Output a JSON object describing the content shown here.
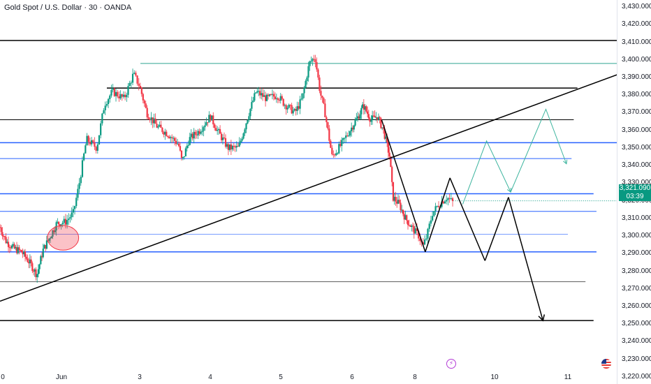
{
  "header": {
    "title": "Gold Spot / U.S. Dollar · 30 · OANDA"
  },
  "chart_data": {
    "type": "candlestick",
    "title": "Gold Spot / U.S. Dollar · 30 · OANDA",
    "y_axis": {
      "ticks": [
        "3,430.000",
        "3,420.000",
        "3,410.000",
        "3,400.000",
        "3,390.000",
        "3,380.000",
        "3,370.000",
        "3,360.000",
        "3,350.000",
        "3,340.000",
        "3,330.000",
        "3,320.000",
        "3,310.000",
        "3,300.000",
        "3,290.000",
        "3,280.000",
        "3,270.000",
        "3,260.000",
        "3,250.000",
        "3,240.000",
        "3,230.000",
        "3,220.000"
      ],
      "ylim": [
        3216,
        3434
      ]
    },
    "x_axis": {
      "ticks": [
        {
          "label": "0",
          "t": 0
        },
        {
          "label": "Jun",
          "t": 1
        },
        {
          "label": "3",
          "t": 2
        },
        {
          "label": "4",
          "t": 3
        },
        {
          "label": "5",
          "t": 4
        },
        {
          "label": "6",
          "t": 5
        },
        {
          "label": "8",
          "t": 6
        },
        {
          "label": "10",
          "t": 7
        },
        {
          "label": "11",
          "t": 8
        }
      ]
    },
    "current_price": {
      "value": "3,321.090",
      "countdown": "03:39",
      "color": "#089981"
    },
    "colors": {
      "up": "#089981",
      "down": "#f23645",
      "trend": "#000000",
      "blue_level": "#2962ff",
      "teal_projection": "#3cb49e"
    },
    "path_nodes": [
      [
        0.0,
        3305
      ],
      [
        0.1,
        3297
      ],
      [
        0.22,
        3293
      ],
      [
        0.35,
        3291
      ],
      [
        0.48,
        3285
      ],
      [
        0.6,
        3278
      ],
      [
        0.7,
        3292
      ],
      [
        0.82,
        3300
      ],
      [
        0.92,
        3307
      ],
      [
        1.05,
        3308
      ],
      [
        1.15,
        3313
      ],
      [
        1.22,
        3328
      ],
      [
        1.32,
        3355
      ],
      [
        1.45,
        3350
      ],
      [
        1.55,
        3375
      ],
      [
        1.65,
        3382
      ],
      [
        1.8,
        3378
      ],
      [
        1.92,
        3392
      ],
      [
        2.0,
        3385
      ],
      [
        2.1,
        3370
      ],
      [
        2.25,
        3362
      ],
      [
        2.4,
        3358
      ],
      [
        2.55,
        3352
      ],
      [
        2.6,
        3342
      ],
      [
        2.7,
        3355
      ],
      [
        2.85,
        3360
      ],
      [
        3.0,
        3368
      ],
      [
        3.1,
        3360
      ],
      [
        3.25,
        3350
      ],
      [
        3.4,
        3350
      ],
      [
        3.55,
        3370
      ],
      [
        3.65,
        3382
      ],
      [
        3.8,
        3378
      ],
      [
        3.95,
        3380
      ],
      [
        4.05,
        3375
      ],
      [
        4.2,
        3370
      ],
      [
        4.3,
        3378
      ],
      [
        4.4,
        3398
      ],
      [
        4.48,
        3402
      ],
      [
        4.55,
        3382
      ],
      [
        4.62,
        3370
      ],
      [
        4.72,
        3345
      ],
      [
        4.85,
        3352
      ],
      [
        5.0,
        3362
      ],
      [
        5.1,
        3368
      ],
      [
        5.18,
        3374
      ],
      [
        5.3,
        3366
      ],
      [
        5.4,
        3368
      ],
      [
        5.5,
        3360
      ],
      [
        5.6,
        3345
      ],
      [
        5.65,
        3322
      ],
      [
        5.75,
        3318
      ],
      [
        5.85,
        3310
      ],
      [
        5.95,
        3305
      ],
      [
        6.05,
        3300
      ],
      [
        6.1,
        3294
      ],
      [
        6.15,
        3300
      ],
      [
        6.22,
        3313
      ],
      [
        6.3,
        3318
      ],
      [
        6.4,
        3322
      ],
      [
        6.48,
        3319
      ]
    ],
    "drawings": {
      "horizontal_levels": [
        {
          "y": 3411,
          "t0": 0.0,
          "t1": 8.7,
          "color": "#000000",
          "width": 1.5
        },
        {
          "y": 3398,
          "t0": 2.01,
          "t1": 8.7,
          "color": "#2fa590",
          "width": 1.0
        },
        {
          "y": 3384,
          "t0": 1.58,
          "t1": 8.13,
          "color": "#000000",
          "width": 1.5
        },
        {
          "y": 3366,
          "t0": 0.0,
          "t1": 8.08,
          "color": "#000000",
          "width": 1.0
        },
        {
          "y": 3353,
          "t0": 0.0,
          "t1": 8.7,
          "color": "#2962ff",
          "width": 1.5
        },
        {
          "y": 3344,
          "t0": 0.0,
          "t1": 8.05,
          "color": "#2962ff",
          "width": 1.0
        },
        {
          "y": 3324,
          "t0": 0.0,
          "t1": 8.35,
          "color": "#2962ff",
          "width": 1.5
        },
        {
          "y": 3320,
          "t0": 6.48,
          "t1": 8.7,
          "color": "#089981",
          "width": 1.0,
          "dash": true
        },
        {
          "y": 3314,
          "t0": 0.0,
          "t1": 8.39,
          "color": "#2962ff",
          "width": 1.0
        },
        {
          "y": 3301,
          "t0": 0.0,
          "t1": 8.0,
          "color": "#2962ff",
          "width": 0.7
        },
        {
          "y": 3291,
          "t0": 0.0,
          "t1": 8.39,
          "color": "#2962ff",
          "width": 1.5
        },
        {
          "y": 3274,
          "t0": 0.0,
          "t1": 8.24,
          "color": "#000000",
          "width": 0.6
        },
        {
          "y": 3252,
          "t0": 0.0,
          "t1": 8.35,
          "color": "#000000",
          "width": 1.5
        }
      ],
      "trend_lines": [
        {
          "from": [
            0.0,
            3263
          ],
          "to": [
            8.83,
            3394
          ],
          "color": "#000000",
          "width": 1.5
        },
        {
          "from": [
            5.47,
            3366
          ],
          "to": [
            6.13,
            3291
          ],
          "color": "#000000",
          "width": 1.5
        },
        {
          "from": [
            6.13,
            3291
          ],
          "to": [
            6.44,
            3333
          ],
          "color": "#000000",
          "width": 1.5
        },
        {
          "from": [
            6.44,
            3333
          ],
          "to": [
            6.88,
            3286
          ],
          "color": "#000000",
          "width": 1.5
        },
        {
          "from": [
            6.88,
            3286
          ],
          "to": [
            7.19,
            3322
          ],
          "color": "#000000",
          "width": 1.5
        },
        {
          "from": [
            7.19,
            3322
          ],
          "to": [
            7.66,
            3252
          ],
          "color": "#000000",
          "width": 1.5,
          "arrow": true
        }
      ],
      "teal_projection": [
        [
          6.6,
          3318
        ],
        [
          6.9,
          3354
        ],
        [
          7.22,
          3325
        ],
        [
          7.7,
          3372
        ],
        [
          7.98,
          3341
        ]
      ],
      "ellipse": {
        "t": 1.02,
        "y": 3299,
        "rt": 0.2,
        "ry": 7,
        "fill": "rgba(242,54,69,0.30)",
        "stroke": "#f23645"
      }
    }
  },
  "footer": {
    "events": [
      {
        "icon": "flash-icon",
        "color": "#b33bd6"
      },
      {
        "icon": "us-flag-icon"
      }
    ]
  }
}
